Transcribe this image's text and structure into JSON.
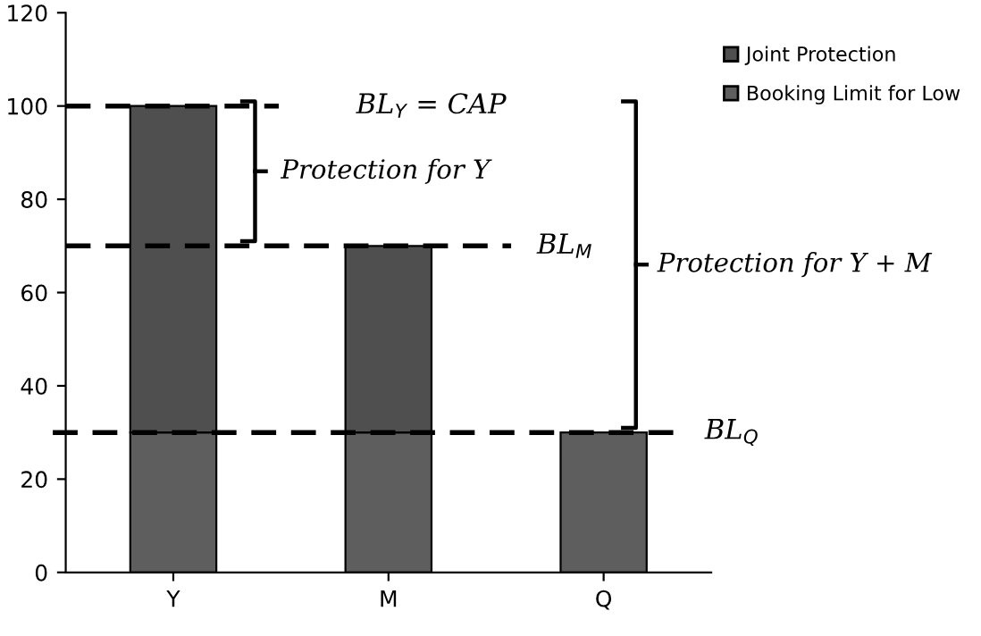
{
  "chart_data": {
    "type": "bar",
    "stacked": true,
    "categories": [
      "Y",
      "M",
      "Q"
    ],
    "series": [
      {
        "name": "Booking Limit for Low",
        "color": "#5e5e5e",
        "values": [
          30,
          30,
          30
        ]
      },
      {
        "name": "Joint Protection",
        "color": "#4f4f4f",
        "values": [
          70,
          40,
          null
        ]
      }
    ],
    "ylim": [
      0,
      120
    ],
    "yticks": [
      0,
      20,
      40,
      60,
      80,
      100,
      120
    ],
    "grid": false,
    "legend": "top right",
    "ref_lines": [
      {
        "axis": "y",
        "value": 100,
        "label": "BL$_{Y}$ = CAP",
        "color": "#000000",
        "line_style": "dashed"
      },
      {
        "axis": "y",
        "value": 70,
        "label": "BL$_{M}$",
        "color": "#000000",
        "line_style": "dashed"
      },
      {
        "axis": "y",
        "value": 30,
        "label": "BL$_{Q}$",
        "color": "#000000",
        "line_style": "dashed"
      }
    ],
    "annotations": [
      "Protection for Y",
      "Protection for Y + M"
    ]
  }
}
